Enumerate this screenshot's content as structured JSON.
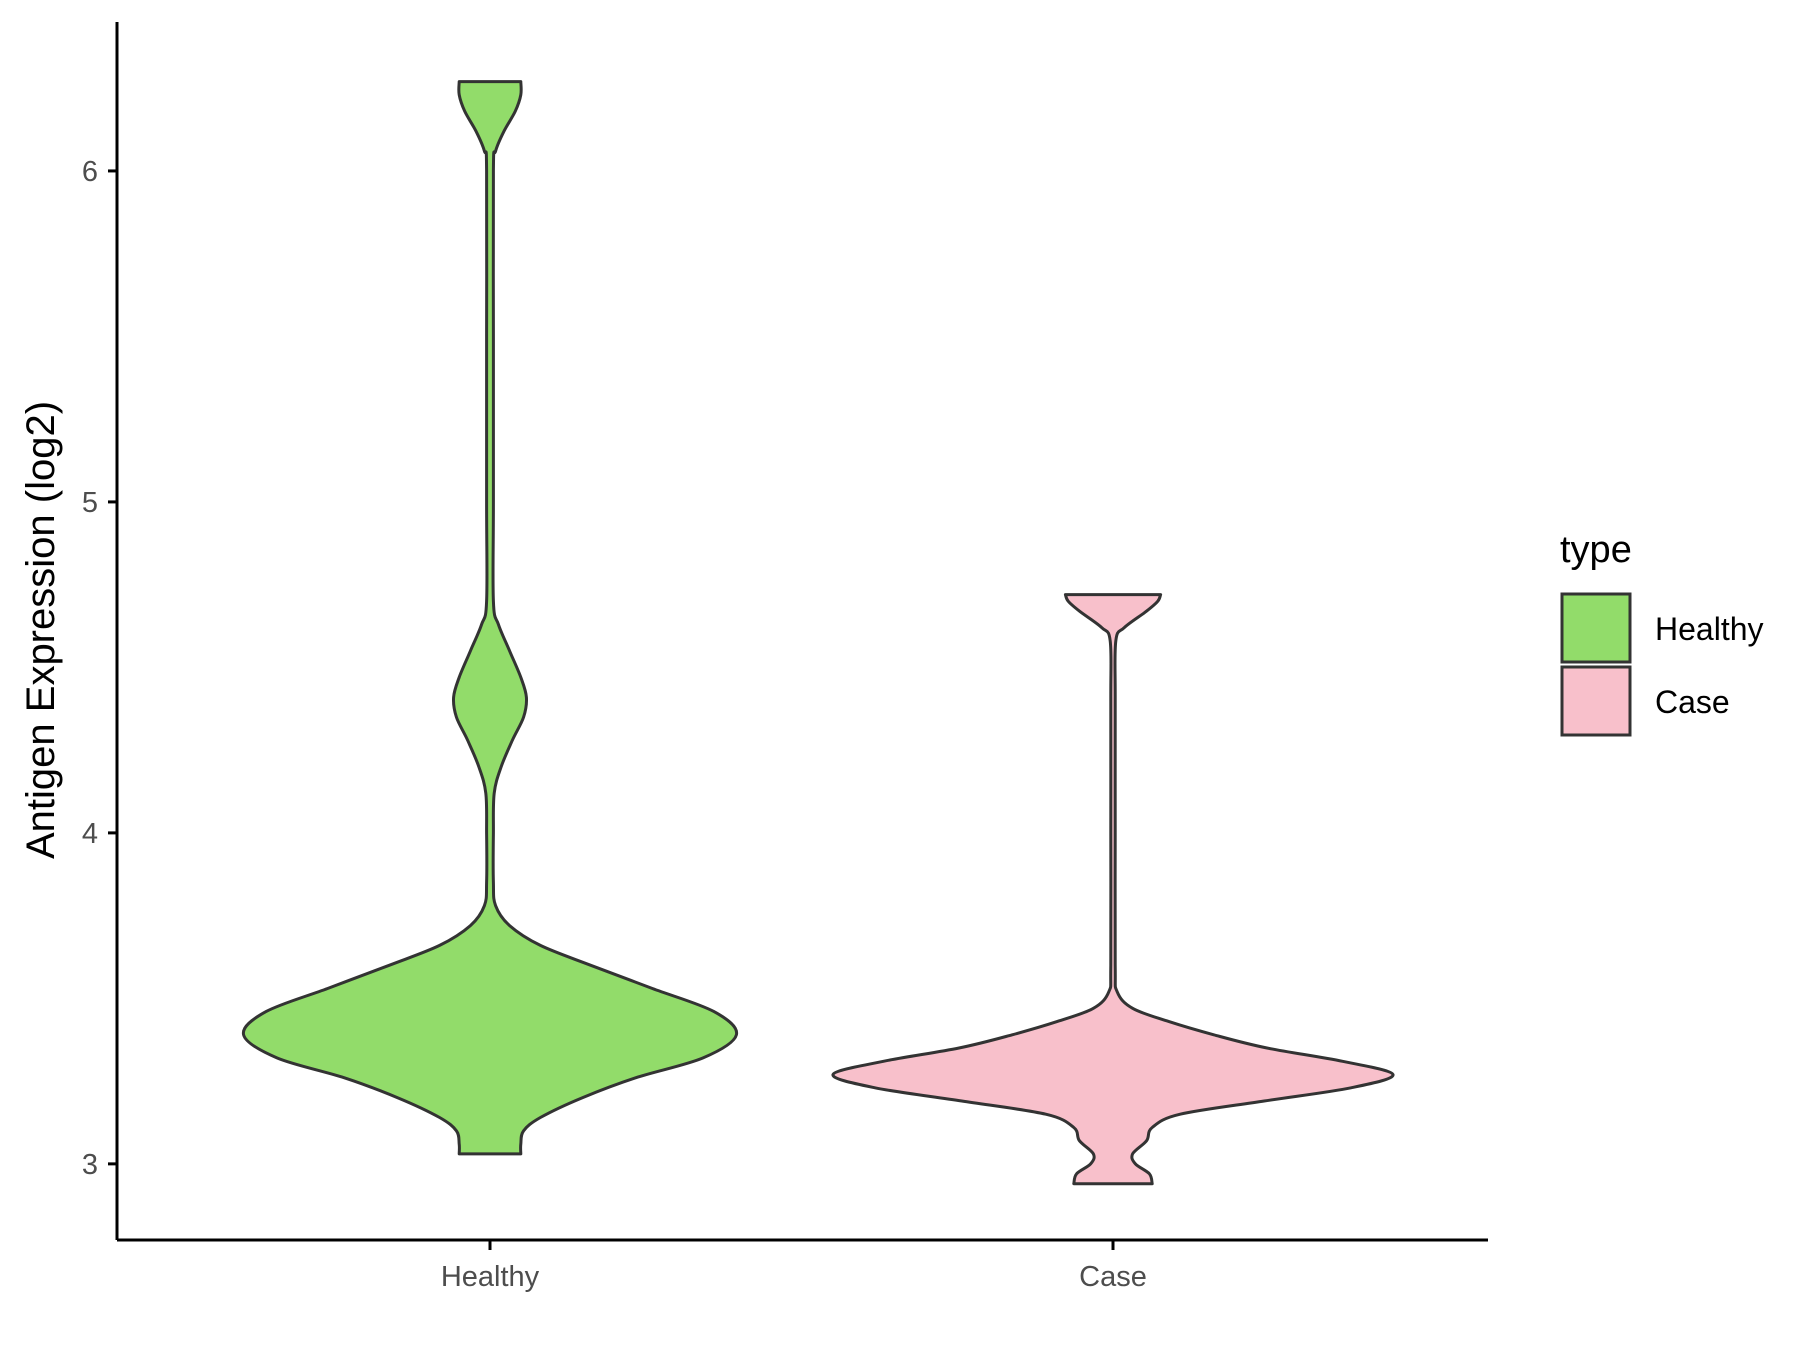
{
  "chart_data": {
    "type": "violin",
    "title": "",
    "xlabel": "",
    "ylabel": "Antigen Expression (log2)",
    "categories": [
      "Healthy",
      "Case"
    ],
    "ylim": [
      2.77,
      6.45
    ],
    "yticks": [
      3,
      4,
      5,
      6
    ],
    "grid": false,
    "legend": {
      "title": "type",
      "position": "right",
      "entries": [
        {
          "label": "Healthy",
          "color": "#92dc6a"
        },
        {
          "label": "Case",
          "color": "#f8c0cb"
        }
      ]
    },
    "outline_color": "#333333",
    "series": [
      {
        "category": "Healthy",
        "color": "#92dc6a",
        "ymin": 3.03,
        "ymax": 6.27,
        "density_profile": [
          [
            3.03,
            0.11
          ],
          [
            3.06,
            0.11
          ],
          [
            3.1,
            0.12
          ],
          [
            3.14,
            0.18
          ],
          [
            3.2,
            0.33
          ],
          [
            3.26,
            0.52
          ],
          [
            3.32,
            0.76
          ],
          [
            3.39,
            0.88
          ],
          [
            3.46,
            0.8
          ],
          [
            3.53,
            0.58
          ],
          [
            3.6,
            0.36
          ],
          [
            3.66,
            0.18
          ],
          [
            3.72,
            0.07
          ],
          [
            3.78,
            0.02
          ],
          [
            3.85,
            0.012
          ],
          [
            4.0,
            0.012
          ],
          [
            4.12,
            0.015
          ],
          [
            4.2,
            0.04
          ],
          [
            4.28,
            0.08
          ],
          [
            4.35,
            0.12
          ],
          [
            4.41,
            0.13
          ],
          [
            4.47,
            0.11
          ],
          [
            4.55,
            0.07
          ],
          [
            4.63,
            0.03
          ],
          [
            4.7,
            0.012
          ],
          [
            5.0,
            0.012
          ],
          [
            5.5,
            0.012
          ],
          [
            6.0,
            0.012
          ],
          [
            6.06,
            0.02
          ],
          [
            6.12,
            0.05
          ],
          [
            6.18,
            0.09
          ],
          [
            6.23,
            0.11
          ],
          [
            6.27,
            0.11
          ]
        ]
      },
      {
        "category": "Case",
        "color": "#f8c0cb",
        "ymin": 2.94,
        "ymax": 4.72,
        "density_profile": [
          [
            2.94,
            0.14
          ],
          [
            2.97,
            0.13
          ],
          [
            3.0,
            0.08
          ],
          [
            3.03,
            0.07
          ],
          [
            3.07,
            0.12
          ],
          [
            3.11,
            0.14
          ],
          [
            3.15,
            0.24
          ],
          [
            3.19,
            0.54
          ],
          [
            3.23,
            0.85
          ],
          [
            3.27,
            1.0
          ],
          [
            3.31,
            0.82
          ],
          [
            3.35,
            0.55
          ],
          [
            3.39,
            0.36
          ],
          [
            3.43,
            0.2
          ],
          [
            3.47,
            0.07
          ],
          [
            3.52,
            0.015
          ],
          [
            3.6,
            0.008
          ],
          [
            4.0,
            0.008
          ],
          [
            4.4,
            0.008
          ],
          [
            4.58,
            0.01
          ],
          [
            4.62,
            0.04
          ],
          [
            4.67,
            0.12
          ],
          [
            4.7,
            0.16
          ],
          [
            4.72,
            0.17
          ]
        ]
      }
    ]
  }
}
